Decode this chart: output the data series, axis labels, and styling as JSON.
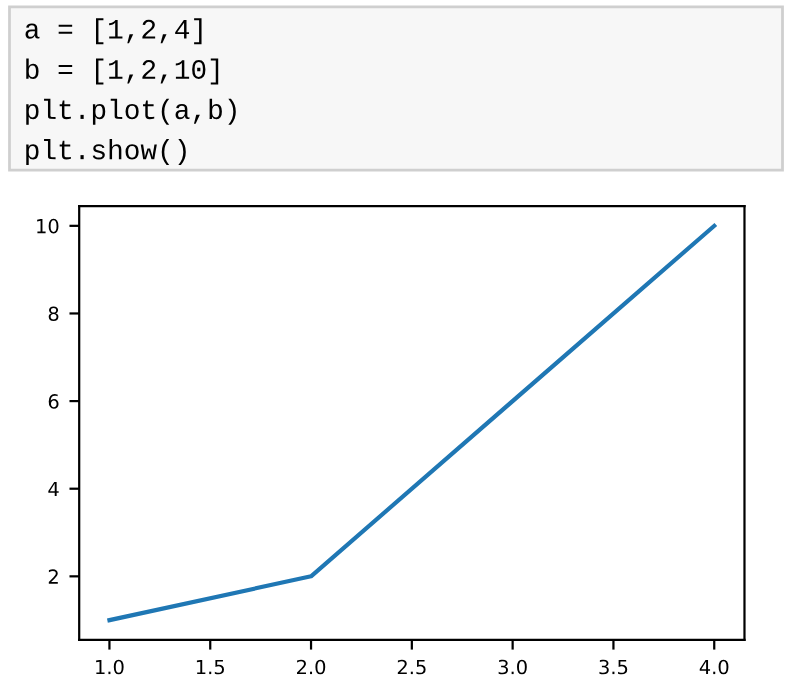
{
  "chart_data": {
    "type": "line",
    "annotations": [
      "a = [1,2,4]",
      "b = [1,2,10]",
      "plt.plot(a,b)",
      "plt.show()"
    ],
    "x": [
      1,
      2,
      4
    ],
    "series": [
      {
        "color": "#1f77b4",
        "values": [
          1,
          2,
          10
        ]
      }
    ],
    "xlim": [
      0.85,
      4.15
    ],
    "ylim": [
      0.55,
      10.45
    ],
    "xticks": [
      {
        "value": 1,
        "label": "1.0"
      },
      {
        "value": 1.5,
        "label": "1.5"
      },
      {
        "value": 2,
        "label": "2.0"
      },
      {
        "value": 2.5,
        "label": "2.5"
      },
      {
        "value": 3,
        "label": "3.0"
      },
      {
        "value": 3.5,
        "label": "3.5"
      },
      {
        "value": 4,
        "label": "4.0"
      }
    ],
    "yticks": [
      2,
      4,
      6,
      8,
      10
    ],
    "grid": false,
    "legend": false,
    "marker": "none",
    "line_style": "solid"
  }
}
